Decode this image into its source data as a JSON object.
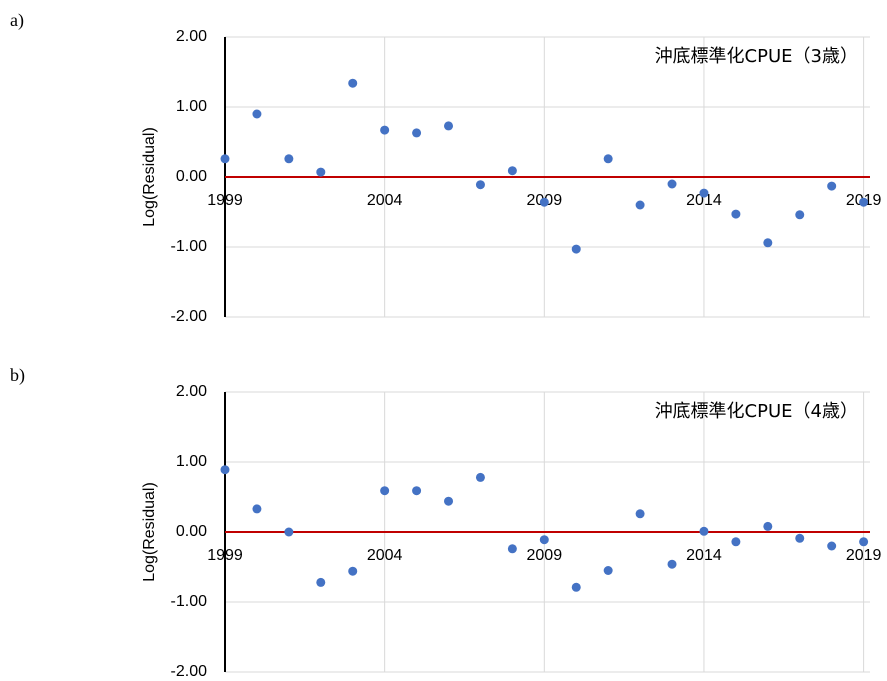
{
  "chart_data": [
    {
      "type": "scatter",
      "panel_label": "a)",
      "annotation": "沖底標準化CPUE（3歳）",
      "y_label": "Log(Residual)",
      "color": "#4472c4",
      "grid": true,
      "zero_line_color": "#c00000",
      "x": [
        1999,
        2000,
        2001,
        2002,
        2003,
        2004,
        2005,
        2006,
        2007,
        2008,
        2009,
        2010,
        2011,
        2012,
        2013,
        2014,
        2015,
        2016,
        2017,
        2018,
        2019
      ],
      "values": [
        0.26,
        0.9,
        0.26,
        0.07,
        1.34,
        0.67,
        0.63,
        0.73,
        -0.11,
        0.09,
        -0.36,
        -1.03,
        0.26,
        -0.4,
        -0.1,
        -0.23,
        -0.53,
        -0.94,
        -0.54,
        -0.13,
        -0.36
      ],
      "xlim": [
        1999,
        2019.2
      ],
      "xticks": [
        1999,
        2004,
        2009,
        2014,
        2019
      ],
      "ylim": [
        -2,
        2
      ],
      "yticks": [
        {
          "value": 2,
          "label": "2.00"
        },
        {
          "value": 1,
          "label": "1.00"
        },
        {
          "value": 0,
          "label": "0.00"
        },
        {
          "value": -1,
          "label": "-1.00"
        },
        {
          "value": -2,
          "label": "-2.00"
        }
      ]
    },
    {
      "type": "scatter",
      "panel_label": "b)",
      "annotation": "沖底標準化CPUE（4歳）",
      "y_label": "Log(Residual)",
      "color": "#4472c4",
      "grid": true,
      "zero_line_color": "#c00000",
      "x": [
        1999,
        2000,
        2001,
        2002,
        2003,
        2004,
        2005,
        2006,
        2007,
        2008,
        2009,
        2010,
        2011,
        2012,
        2013,
        2014,
        2015,
        2016,
        2017,
        2018,
        2019
      ],
      "values": [
        0.89,
        0.33,
        0.0,
        -0.72,
        -0.56,
        0.59,
        0.59,
        0.44,
        0.78,
        -0.24,
        -0.11,
        -0.79,
        -0.55,
        0.26,
        -0.46,
        0.01,
        -0.14,
        0.08,
        -0.09,
        -0.2,
        -0.14
      ],
      "xlim": [
        1999,
        2019.2
      ],
      "xticks": [
        1999,
        2004,
        2009,
        2014,
        2019
      ],
      "ylim": [
        -2,
        2
      ],
      "yticks": [
        {
          "value": 2,
          "label": "2.00"
        },
        {
          "value": 1,
          "label": "1.00"
        },
        {
          "value": 0,
          "label": "0.00"
        },
        {
          "value": -1,
          "label": "-1.00"
        },
        {
          "value": -2,
          "label": "-2.00"
        }
      ]
    }
  ]
}
